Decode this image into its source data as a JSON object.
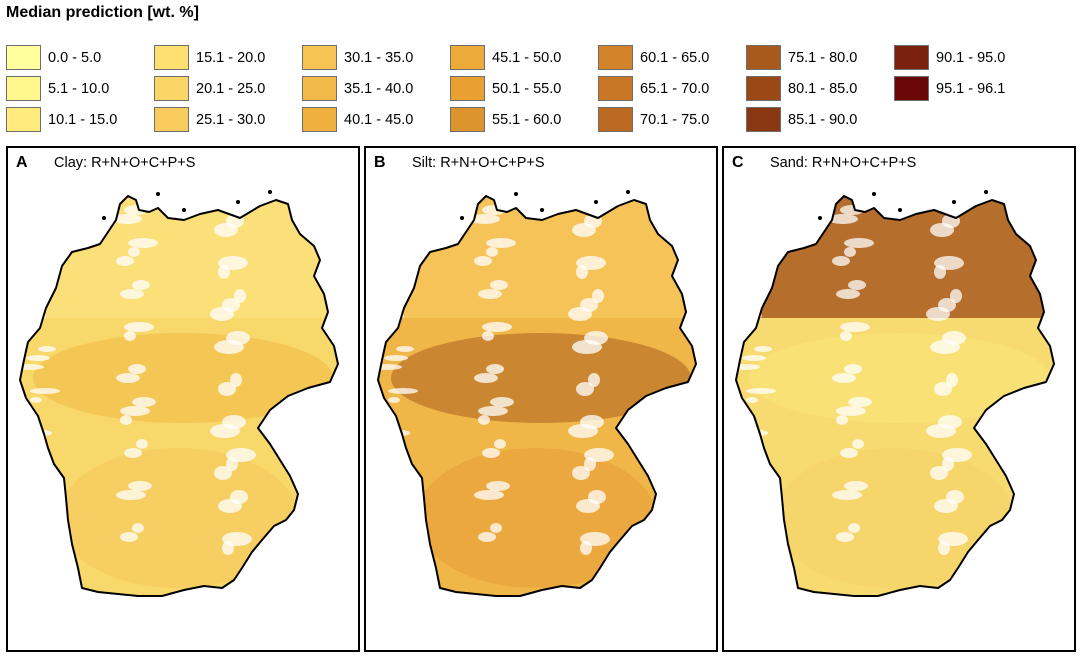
{
  "legend": {
    "title": "Median prediction [wt. %]",
    "items": [
      {
        "label": "0.0 - 5.0",
        "color": "#ffff9e"
      },
      {
        "label": "5.1 - 10.0",
        "color": "#fff68c"
      },
      {
        "label": "10.1 - 15.0",
        "color": "#ffec7d"
      },
      {
        "label": "15.1 - 20.0",
        "color": "#fde070"
      },
      {
        "label": "20.1 - 25.0",
        "color": "#fbd666"
      },
      {
        "label": "25.1 - 30.0",
        "color": "#f8cc5c"
      },
      {
        "label": "30.1 - 35.0",
        "color": "#f6c453"
      },
      {
        "label": "35.1 - 40.0",
        "color": "#f3ba49"
      },
      {
        "label": "40.1 - 45.0",
        "color": "#f0b03f"
      },
      {
        "label": "45.1 - 50.0",
        "color": "#eeaa38"
      },
      {
        "label": "50.1 - 55.0",
        "color": "#e8a030"
      },
      {
        "label": "55.1 - 60.0",
        "color": "#dc942d"
      },
      {
        "label": "60.1 - 65.0",
        "color": "#d3842a"
      },
      {
        "label": "65.1 - 70.0",
        "color": "#c97727"
      },
      {
        "label": "70.1 - 75.0",
        "color": "#bc6a22"
      },
      {
        "label": "75.1 - 80.0",
        "color": "#a85a1c"
      },
      {
        "label": "80.1 - 85.0",
        "color": "#9a4916"
      },
      {
        "label": "85.1 - 90.0",
        "color": "#8a3811"
      },
      {
        "label": "90.1 - 95.0",
        "color": "#7a220d"
      },
      {
        "label": "95.1 - 96.1",
        "color": "#6a0808"
      }
    ]
  },
  "panels": [
    {
      "letter": "A",
      "title": "Clay: R+N+O+C+P+S",
      "base_color": "#f8d76b",
      "north_color": "#fbe07a",
      "central_color": "#f2c24f",
      "south_color": "#f6cb5e"
    },
    {
      "letter": "B",
      "title": "Silt: R+N+O+C+P+S",
      "base_color": "#f1b648",
      "north_color": "#f6c65a",
      "central_color": "#c07a2c",
      "south_color": "#e8a23a"
    },
    {
      "letter": "C",
      "title": "Sand: R+N+O+C+P+S",
      "base_color": "#f7db70",
      "north_color": "#a95a1f",
      "central_color": "#f9e278",
      "south_color": "#f5d468"
    }
  ]
}
